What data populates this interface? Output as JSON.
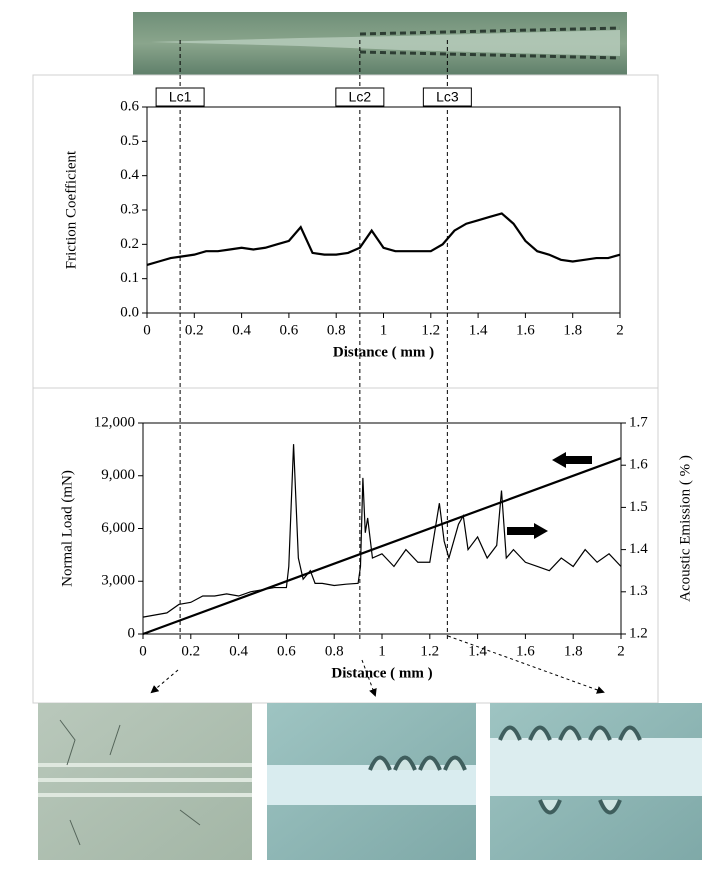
{
  "chart_data": [
    {
      "type": "line",
      "y_label": "Friction Coefficient",
      "x_label": "Distance ( mm )",
      "xlim": [
        0,
        2
      ],
      "xticks": [
        0,
        0.2,
        0.4,
        0.6,
        0.8,
        1,
        1.2,
        1.4,
        1.6,
        1.8,
        2
      ],
      "ylim": [
        0,
        0.6
      ],
      "yticks": [
        {
          "value": 0,
          "label": "0.0"
        },
        0.1,
        0.2,
        0.3,
        0.4,
        0.5,
        0.6
      ],
      "series": [
        {
          "color": "#000000",
          "x": [
            0,
            0.05,
            0.1,
            0.15,
            0.2,
            0.25,
            0.3,
            0.35,
            0.4,
            0.45,
            0.5,
            0.55,
            0.6,
            0.65,
            0.7,
            0.75,
            0.8,
            0.85,
            0.9,
            0.95,
            1,
            1.05,
            1.1,
            1.15,
            1.2,
            1.25,
            1.3,
            1.35,
            1.4,
            1.45,
            1.5,
            1.55,
            1.6,
            1.65,
            1.7,
            1.75,
            1.8,
            1.85,
            1.9,
            1.95,
            2
          ],
          "values": [
            0.14,
            0.15,
            0.16,
            0.165,
            0.17,
            0.18,
            0.18,
            0.185,
            0.19,
            0.185,
            0.19,
            0.2,
            0.21,
            0.25,
            0.175,
            0.17,
            0.17,
            0.175,
            0.19,
            0.24,
            0.19,
            0.18,
            0.18,
            0.18,
            0.18,
            0.2,
            0.24,
            0.26,
            0.27,
            0.28,
            0.29,
            0.26,
            0.21,
            0.18,
            0.17,
            0.155,
            0.15,
            0.155,
            0.16,
            0.16,
            0.17
          ]
        }
      ]
    },
    {
      "type": "line",
      "y_label": "Normal Load (mN)",
      "y2_label": "Acoustic Emission ( % )",
      "x_label": "Distance ( mm )",
      "xlim": [
        0,
        2
      ],
      "xticks": [
        0,
        0.2,
        0.4,
        0.6,
        0.8,
        1,
        1.2,
        1.4,
        1.6,
        1.8,
        2
      ],
      "ylim": [
        0,
        12000
      ],
      "yticks": [
        0,
        {
          "value": 3000,
          "label": "3,000"
        },
        {
          "value": 6000,
          "label": "6,000"
        },
        {
          "value": 9000,
          "label": "9,000"
        },
        {
          "value": 12000,
          "label": "12,000"
        }
      ],
      "y2lim": [
        1.2,
        1.7
      ],
      "y2ticks": [
        1.2,
        1.3,
        1.4,
        1.5,
        1.6,
        1.7
      ],
      "series": [
        {
          "color": "#000000",
          "axis": "y",
          "x": [
            0,
            2
          ],
          "values": [
            0,
            10000
          ]
        },
        {
          "color": "#000000",
          "axis": "y2",
          "x": [
            0,
            0.05,
            0.1,
            0.15,
            0.2,
            0.25,
            0.3,
            0.35,
            0.4,
            0.45,
            0.5,
            0.55,
            0.6,
            0.61,
            0.63,
            0.65,
            0.67,
            0.7,
            0.72,
            0.75,
            0.8,
            0.85,
            0.9,
            0.91,
            0.92,
            0.93,
            0.94,
            0.96,
            1,
            1.05,
            1.1,
            1.15,
            1.2,
            1.24,
            1.26,
            1.28,
            1.32,
            1.34,
            1.36,
            1.4,
            1.44,
            1.48,
            1.5,
            1.52,
            1.55,
            1.6,
            1.65,
            1.7,
            1.75,
            1.8,
            1.85,
            1.9,
            1.95,
            2
          ],
          "values": [
            1.24,
            1.245,
            1.25,
            1.27,
            1.275,
            1.29,
            1.29,
            1.295,
            1.29,
            1.3,
            1.305,
            1.31,
            1.31,
            1.36,
            1.65,
            1.38,
            1.33,
            1.35,
            1.32,
            1.32,
            1.315,
            1.318,
            1.32,
            1.36,
            1.57,
            1.44,
            1.475,
            1.38,
            1.39,
            1.36,
            1.4,
            1.37,
            1.37,
            1.51,
            1.42,
            1.38,
            1.46,
            1.48,
            1.4,
            1.43,
            1.38,
            1.41,
            1.54,
            1.38,
            1.4,
            1.37,
            1.36,
            1.35,
            1.38,
            1.36,
            1.4,
            1.37,
            1.39,
            1.36
          ]
        }
      ]
    }
  ],
  "markers": [
    {
      "label": "Lc1",
      "x": 0.14
    },
    {
      "label": "Lc2",
      "x": 0.9
    },
    {
      "label": "Lc3",
      "x": 1.27
    }
  ]
}
